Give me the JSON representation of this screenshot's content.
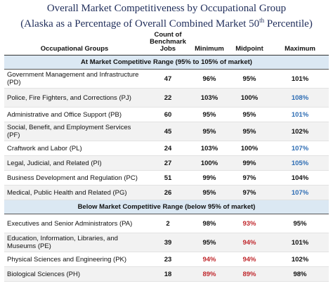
{
  "header": {
    "title": "Overall Market Competitiveness by Occupational Group",
    "subtitle": [
      "(Alaska as a Percentage of Overall Combined Market 50",
      "th",
      " Percentile)"
    ]
  },
  "colors": {
    "blue": "#2e6db4",
    "red": "#c0282d"
  },
  "table": {
    "columns": [
      "Occupational Groups",
      "Count of Benchmark Jobs",
      "Minimum",
      "Midpoint",
      "Maximum"
    ],
    "sections": [
      {
        "title": "At Market Competitive Range (95% to 105% of market)",
        "rows": [
          {
            "cells": [
              "Government Management and Infrastructure (PD)",
              47,
              "96%",
              "95%",
              "101%"
            ],
            "highlight": {}
          },
          {
            "cells": [
              "Police, Fire Fighters, and Corrections (PJ)",
              22,
              "103%",
              "100%",
              "108%"
            ],
            "highlight": {
              "4": "blue"
            }
          },
          {
            "cells": [
              "Administrative and Office Support (PB)",
              60,
              "95%",
              "95%",
              "101%"
            ],
            "highlight": {
              "4": "blue"
            }
          },
          {
            "cells": [
              "Social, Benefit, and Employment Services (PF)",
              45,
              "95%",
              "95%",
              "102%"
            ],
            "highlight": {}
          },
          {
            "cells": [
              "Craftwork and Labor (PL)",
              24,
              "103%",
              "100%",
              "107%"
            ],
            "highlight": {
              "4": "blue"
            }
          },
          {
            "cells": [
              "Legal, Judicial, and Related (PI)",
              27,
              "100%",
              "99%",
              "105%"
            ],
            "highlight": {
              "4": "blue"
            }
          },
          {
            "cells": [
              "Business Development and Regulation (PC)",
              51,
              "99%",
              "97%",
              "104%"
            ],
            "highlight": {}
          },
          {
            "cells": [
              "Medical, Public Health and Related (PG)",
              26,
              "95%",
              "97%",
              "107%"
            ],
            "highlight": {
              "4": "blue"
            }
          }
        ]
      },
      {
        "title": "Below Market Competitive Range (below 95% of market)",
        "rows": [
          {
            "cells": [
              "Executives and Senior Administrators (PA)",
              2,
              "98%",
              "93%",
              "95%"
            ],
            "highlight": {
              "3": "red"
            }
          },
          {
            "cells": [
              "Education, Information, Libraries, and Museums (PE)",
              39,
              "95%",
              "94%",
              "101%"
            ],
            "highlight": {
              "3": "red"
            }
          },
          {
            "cells": [
              "Physical Sciences and Engineering (PK)",
              23,
              "94%",
              "94%",
              "102%"
            ],
            "highlight": {
              "2": "red",
              "3": "red"
            }
          },
          {
            "cells": [
              "Biological Sciences (PH)",
              18,
              "89%",
              "89%",
              "98%"
            ],
            "highlight": {
              "2": "red",
              "3": "red"
            }
          }
        ]
      }
    ]
  }
}
